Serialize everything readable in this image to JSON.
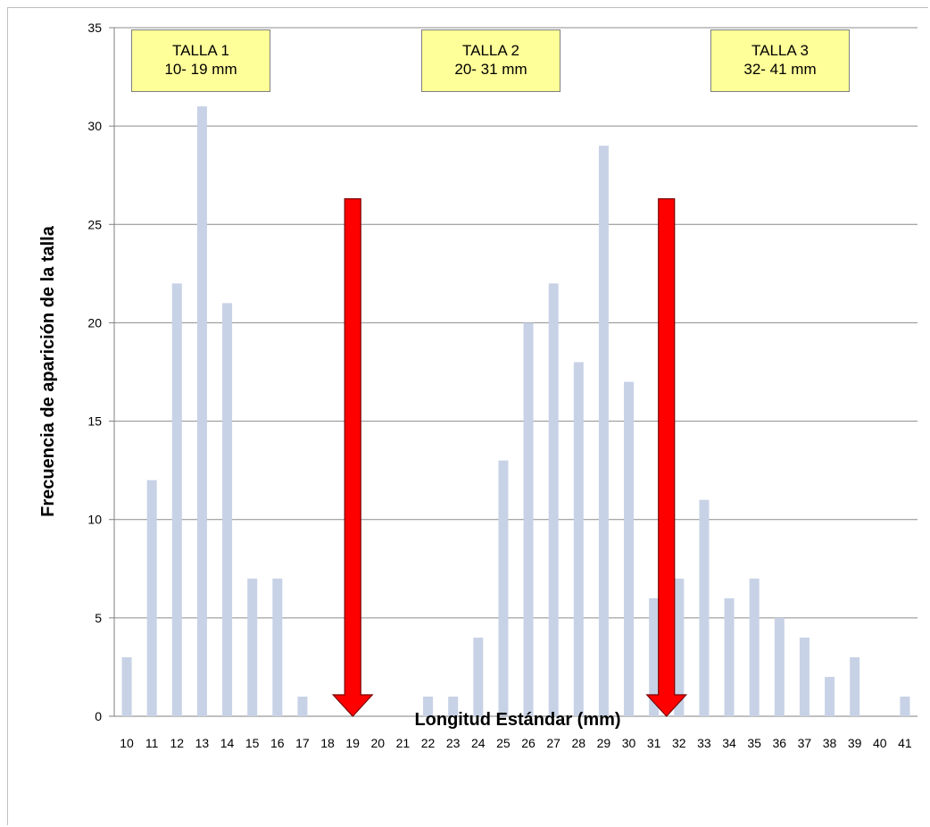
{
  "chart_data": {
    "type": "bar",
    "xlabel": "Longitud  Estándar (mm)",
    "ylabel": "Frecuencia de aparición de la talla",
    "ylim": [
      0,
      35
    ],
    "yticks": [
      0,
      5,
      10,
      15,
      20,
      25,
      30,
      35
    ],
    "grid": true,
    "categories": [
      "10",
      "11",
      "12",
      "13",
      "14",
      "15",
      "16",
      "17",
      "18",
      "19",
      "20",
      "21",
      "22",
      "23",
      "24",
      "25",
      "26",
      "27",
      "28",
      "29",
      "30",
      "31",
      "32",
      "33",
      "34",
      "35",
      "36",
      "37",
      "38",
      "39",
      "40",
      "41"
    ],
    "values": [
      3,
      12,
      22,
      31,
      21,
      7,
      7,
      1,
      0,
      0,
      0,
      0,
      1,
      1,
      4,
      13,
      20,
      22,
      18,
      29,
      17,
      6,
      7,
      11,
      6,
      7,
      5,
      4,
      2,
      3,
      0,
      1
    ],
    "bar_color": "#c8d2e6",
    "annotations": [
      {
        "line1": "TALLA 1",
        "line2": "10- 19 mm"
      },
      {
        "line1": "TALLA 2",
        "line2": "20- 31 mm"
      },
      {
        "line1": "TALLA 3",
        "line2": "32- 41 mm"
      }
    ],
    "arrows": [
      {
        "x": 19,
        "from_y": 26.3,
        "to_y": 0,
        "color": "#ff0000"
      },
      {
        "x": 31.5,
        "from_y": 26.3,
        "to_y": 0,
        "color": "#ff0000"
      }
    ]
  }
}
